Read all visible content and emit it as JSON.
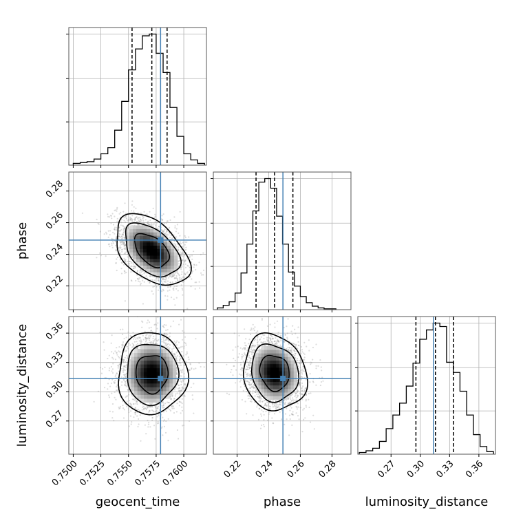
{
  "chart_data": {
    "type": "corner",
    "grid": true,
    "params": [
      {
        "name": "geocent_time",
        "label": "geocent_time",
        "injection": 0.7579,
        "quantiles": [
          0.75532,
          0.75711,
          0.75849
        ],
        "range": [
          0.7496,
          0.76205
        ],
        "ticks": [
          "0.7500",
          "0.7525",
          "0.7550",
          "0.7575",
          "0.7600"
        ]
      },
      {
        "name": "phase",
        "label": "phase",
        "injection": 0.249,
        "quantiles": [
          0.232,
          0.2437,
          0.2553
        ],
        "range": [
          0.205,
          0.292
        ],
        "ticks": [
          "0.22",
          "0.24",
          "0.26",
          "0.28"
        ]
      },
      {
        "name": "luminosity_distance",
        "label": "luminosity_distance",
        "injection": 0.3135,
        "quantiles": [
          0.2955,
          0.3155,
          0.334
        ],
        "range": [
          0.236,
          0.377
        ],
        "ticks": [
          "0.27",
          "0.30",
          "0.33",
          "0.36"
        ]
      }
    ],
    "marginals": {
      "geocent_time": {
        "bin_edges": [
          0.75,
          0.75063,
          0.75125,
          0.75188,
          0.7525,
          0.75313,
          0.75375,
          0.75438,
          0.755,
          0.75563,
          0.75625,
          0.75688,
          0.7575,
          0.75813,
          0.75875,
          0.75938,
          0.76,
          0.76063,
          0.76125,
          0.76188
        ],
        "counts": [
          2,
          3,
          4,
          7,
          13,
          20,
          40,
          73,
          109,
          133,
          148,
          150,
          128,
          106,
          66,
          33,
          13,
          6,
          2
        ]
      },
      "phase": {
        "bin_edges": [
          0.2075,
          0.21125,
          0.215,
          0.21875,
          0.2225,
          0.22625,
          0.23,
          0.23375,
          0.2375,
          0.24125,
          0.245,
          0.24875,
          0.2525,
          0.25625,
          0.26,
          0.26375,
          0.2675,
          0.27125,
          0.275,
          0.27875,
          0.2825
        ],
        "counts": [
          2,
          5,
          9,
          19,
          42,
          75,
          113,
          146,
          150,
          139,
          107,
          75,
          43,
          27,
          15,
          8,
          4,
          2,
          1,
          1
        ]
      },
      "luminosity_distance": {
        "bin_edges": [
          0.2375,
          0.24438,
          0.25125,
          0.25813,
          0.265,
          0.27188,
          0.27875,
          0.28563,
          0.2925,
          0.29938,
          0.30625,
          0.31313,
          0.32,
          0.32688,
          0.33375,
          0.34063,
          0.3475,
          0.35438,
          0.36125,
          0.36813,
          0.375
        ],
        "counts": [
          2,
          4,
          7,
          15,
          30,
          46,
          60,
          80,
          107,
          135,
          146,
          154,
          150,
          108,
          96,
          74,
          46,
          23,
          9,
          3
        ]
      }
    },
    "joint": [
      {
        "x": "geocent_time",
        "y": "phase",
        "peak": [
          0.7571,
          0.2425
        ],
        "sigma": [
          0.00155,
          0.0105
        ],
        "rho": -0.45
      },
      {
        "x": "geocent_time",
        "y": "luminosity_distance",
        "peak": [
          0.75711,
          0.3185
        ],
        "sigma": [
          0.00145,
          0.0195
        ],
        "rho": 0.0
      },
      {
        "x": "phase",
        "y": "luminosity_distance",
        "peak": [
          0.2437,
          0.3195
        ],
        "sigma": [
          0.0093,
          0.0182
        ],
        "rho": -0.12
      }
    ],
    "colors": {
      "truth": "#4682b4",
      "hist": "#000000",
      "grid": "#b0b0b0",
      "points": "#9a9a9a"
    }
  }
}
